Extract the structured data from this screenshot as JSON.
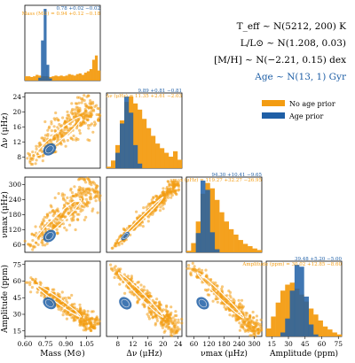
{
  "chart_data": {
    "type": "corner",
    "colors": {
      "no_age_prior": "#f39c12",
      "age_prior": "#1f5fa6"
    },
    "legend": {
      "placement": "top-right",
      "entries": [
        {
          "label": "No age prior",
          "color": "#f39c12"
        },
        {
          "label": "Age prior",
          "color": "#1f5fa6"
        }
      ]
    },
    "priors": [
      "T_eff ~ N(5212, 200) K",
      "L/L⊙ ~ N(1.208, 0.03)",
      "[M/H] ~ N(−2.21, 0.15) dex",
      "Age ~ N(13, 1) Gyr"
    ],
    "prior_colors": [
      "#000000",
      "#000000",
      "#000000",
      "#1f5fa6"
    ],
    "parameters": [
      {
        "key": "mass",
        "label": "Mass (M⊙)",
        "range": [
          0.6,
          1.15
        ],
        "ticks": [
          0.6,
          0.75,
          0.9,
          1.05
        ],
        "tick_labels": [
          "0.60",
          "0.75",
          "0.90",
          "1.05"
        ],
        "title_age": "0.78 +0.02 −0.02",
        "title_noage": "Mass (M⊙) = 0.94 +0.12 −0.18"
      },
      {
        "key": "dnu",
        "label": "Δν (μHz)",
        "range": [
          5,
          25
        ],
        "ticks": [
          8,
          12,
          16,
          20,
          24
        ],
        "tick_labels": [
          "8",
          "12",
          "16",
          "20",
          "24"
        ],
        "title_age": "9.89 +0.81 −0.81",
        "title_noage": "Δν (μHz) = 11.35 +2.61 −2.03"
      },
      {
        "key": "numax",
        "label": "νmax (μHz)",
        "range": [
          30,
          330
        ],
        "ticks": [
          60,
          120,
          180,
          240,
          300
        ],
        "tick_labels": [
          "60",
          "120",
          "180",
          "240",
          "300"
        ],
        "title_age": "94.30 +10.41 −9.65",
        "title_noage": "νmax (μHz) = 119.27 +32.27 −26.95"
      },
      {
        "key": "amp",
        "label": "Amplitude (ppm)",
        "range": [
          10,
          78
        ],
        "ticks": [
          15,
          30,
          45,
          60,
          75
        ],
        "tick_labels": [
          "15",
          "30",
          "45",
          "60",
          "75"
        ],
        "title_age": "39.48 +5.20 −5.00",
        "title_noage": "Amplitude (ppm) = 30.02 +12.85 −8.60"
      }
    ],
    "histograms": {
      "mass": {
        "no_age_prior": [
          0.6,
          0.6,
          0.5,
          0.6,
          0.8,
          0.7,
          0.6,
          0.6,
          0.6,
          0.5,
          0.6,
          0.7,
          0.6,
          0.7,
          0.6,
          0.7,
          0.9,
          0.8,
          0.7,
          0.9,
          1.0,
          0.8,
          1.1,
          1.3,
          1.6,
          2.9,
          3.5,
          1.4
        ],
        "age_prior": [
          0,
          0,
          0,
          0,
          0,
          0.4,
          5.6,
          10.0,
          2.2,
          0.3,
          0,
          0,
          0,
          0,
          0,
          0,
          0,
          0,
          0,
          0,
          0,
          0,
          0,
          0,
          0,
          0,
          0,
          0
        ]
      },
      "dnu": {
        "no_age_prior": [
          0.2,
          1.0,
          3.0,
          6.2,
          8.6,
          9.3,
          8.4,
          7.6,
          6.4,
          5.2,
          4.2,
          3.2,
          2.6,
          2.0,
          1.5,
          2.2,
          1.1
        ],
        "age_prior": [
          0,
          0,
          2.0,
          5.8,
          9.3,
          7.2,
          3.0,
          0.6,
          0,
          0,
          0,
          0,
          0,
          0,
          0,
          0,
          0
        ]
      },
      "numax": {
        "no_age_prior": [
          0.2,
          1.2,
          4.0,
          7.6,
          9.0,
          8.3,
          6.8,
          5.2,
          4.0,
          3.0,
          2.3,
          1.6,
          1.1,
          0.8,
          0.5,
          0.3
        ],
        "age_prior": [
          0,
          0,
          2.5,
          9.3,
          8.1,
          2.6,
          0.4,
          0,
          0,
          0,
          0,
          0,
          0,
          0,
          0,
          0
        ]
      },
      "amp": {
        "no_age_prior": [
          0.8,
          2.0,
          3.4,
          4.6,
          5.2,
          5.4,
          4.8,
          4.2,
          3.5,
          2.8,
          2.2,
          1.6,
          1.0,
          0.7,
          0.4,
          0.2
        ],
        "age_prior": [
          0,
          0,
          0,
          0.4,
          1.8,
          4.6,
          7.2,
          7.0,
          4.0,
          1.2,
          0.2,
          0,
          0,
          0,
          0,
          0
        ]
      }
    },
    "pair_relations": {
      "mass|dnu": {
        "no_age_prior": [
          [
            0.62,
            6.5
          ],
          [
            1.12,
            22
          ]
        ],
        "age_prior_center": [
          0.78,
          10
        ]
      },
      "mass|numax": {
        "no_age_prior": [
          [
            0.62,
            45
          ],
          [
            1.12,
            300
          ]
        ],
        "age_prior_center": [
          0.78,
          95
        ]
      },
      "mass|amp": {
        "no_age_prior": [
          [
            0.62,
            62
          ],
          [
            1.12,
            18
          ]
        ],
        "age_prior_center": [
          0.78,
          40
        ]
      },
      "dnu|numax": {
        "no_age_prior": [
          [
            6,
            40
          ],
          [
            24,
            310
          ]
        ],
        "age_prior_center": [
          10,
          95
        ]
      },
      "dnu|amp": {
        "no_age_prior": [
          [
            6,
            75
          ],
          [
            24,
            14
          ]
        ],
        "age_prior_center": [
          10,
          40
        ]
      },
      "numax|amp": {
        "no_age_prior": [
          [
            40,
            75
          ],
          [
            320,
            13
          ]
        ],
        "age_prior_center": [
          95,
          40
        ]
      }
    }
  }
}
